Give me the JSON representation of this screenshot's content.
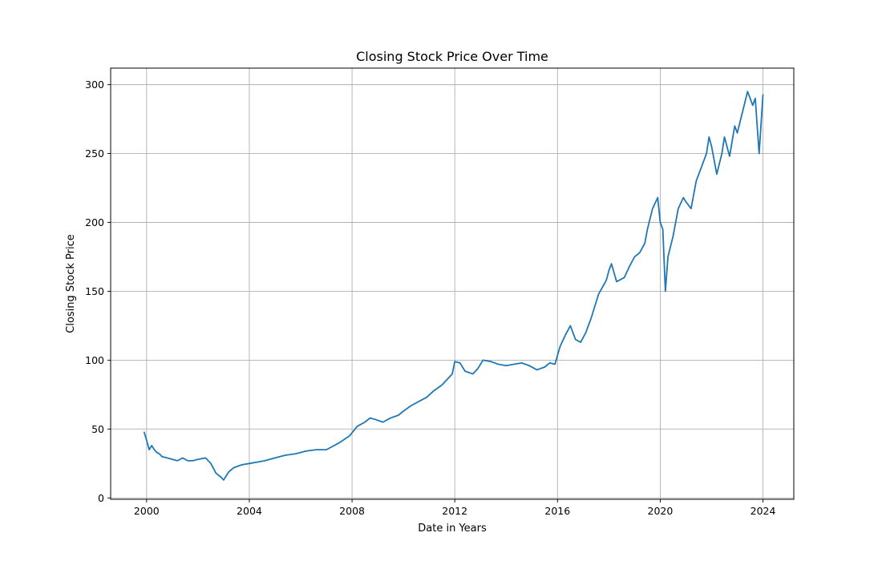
{
  "chart_data": {
    "type": "line",
    "title": "Closing Stock Price Over Time",
    "xlabel": "Date in Years",
    "ylabel": "Closing Stock Price",
    "xlim": [
      1998.6,
      2025.2
    ],
    "ylim": [
      -1,
      312
    ],
    "x_ticks": [
      2000,
      2004,
      2008,
      2012,
      2016,
      2020,
      2024
    ],
    "x_tick_labels": [
      "2000",
      "2004",
      "2008",
      "2012",
      "2016",
      "2020",
      "2024"
    ],
    "y_ticks": [
      0,
      50,
      100,
      150,
      200,
      250,
      300
    ],
    "y_tick_labels": [
      "0",
      "50",
      "100",
      "150",
      "200",
      "250",
      "300"
    ],
    "grid": true,
    "line_color": "#1f77b4",
    "series": [
      {
        "x": [
          1999.9,
          2000.0,
          2000.1,
          2000.2,
          2000.3,
          2000.4,
          2000.5,
          2000.6,
          2000.8,
          2001.0,
          2001.2,
          2001.4,
          2001.6,
          2001.8,
          2002.0,
          2002.3,
          2002.5,
          2002.7,
          2002.9,
          2003.0,
          2003.1,
          2003.2,
          2003.4,
          2003.7,
          2004.0,
          2004.3,
          2004.6,
          2005.0,
          2005.4,
          2005.8,
          2006.2,
          2006.6,
          2007.0,
          2007.5,
          2007.9,
          2008.2,
          2008.5,
          2008.7,
          2008.9,
          2009.2,
          2009.5,
          2009.8,
          2010.0,
          2010.3,
          2010.6,
          2010.9,
          2011.2,
          2011.5,
          2011.7,
          2011.9,
          2012.0,
          2012.2,
          2012.4,
          2012.7,
          2012.9,
          2013.1,
          2013.4,
          2013.7,
          2014.0,
          2014.3,
          2014.6,
          2014.9,
          2015.2,
          2015.5,
          2015.7,
          2015.9,
          2016.1,
          2016.3,
          2016.5,
          2016.7,
          2016.9,
          2017.1,
          2017.3,
          2017.6,
          2017.9,
          2018.0,
          2018.1,
          2018.3,
          2018.6,
          2018.8,
          2019.0,
          2019.2,
          2019.4,
          2019.5,
          2019.7,
          2019.9,
          2020.0,
          2020.1,
          2020.2,
          2020.3,
          2020.5,
          2020.7,
          2020.9,
          2021.0,
          2021.2,
          2021.4,
          2021.6,
          2021.8,
          2021.9,
          2022.0,
          2022.2,
          2022.4,
          2022.5,
          2022.7,
          2022.9,
          2023.0,
          2023.2,
          2023.4,
          2023.6,
          2023.7,
          2023.85,
          2024.0
        ],
        "y": [
          48,
          42,
          35,
          38,
          35,
          33,
          32,
          30,
          29,
          28,
          27,
          29,
          27,
          27,
          28,
          29,
          25,
          18,
          15,
          13,
          16,
          19,
          22,
          24,
          25,
          26,
          27,
          29,
          31,
          32,
          34,
          35,
          35,
          40,
          45,
          52,
          55,
          58,
          57,
          55,
          58,
          60,
          63,
          67,
          70,
          73,
          78,
          82,
          86,
          90,
          99,
          98,
          92,
          90,
          94,
          100,
          99,
          97,
          96,
          97,
          98,
          96,
          93,
          95,
          98,
          97,
          110,
          118,
          125,
          115,
          113,
          120,
          130,
          148,
          158,
          165,
          170,
          157,
          160,
          168,
          175,
          178,
          185,
          195,
          210,
          218,
          200,
          195,
          150,
          175,
          190,
          210,
          218,
          215,
          210,
          230,
          240,
          250,
          262,
          255,
          235,
          250,
          262,
          248,
          270,
          265,
          280,
          295,
          285,
          290,
          250,
          293
        ]
      }
    ]
  }
}
